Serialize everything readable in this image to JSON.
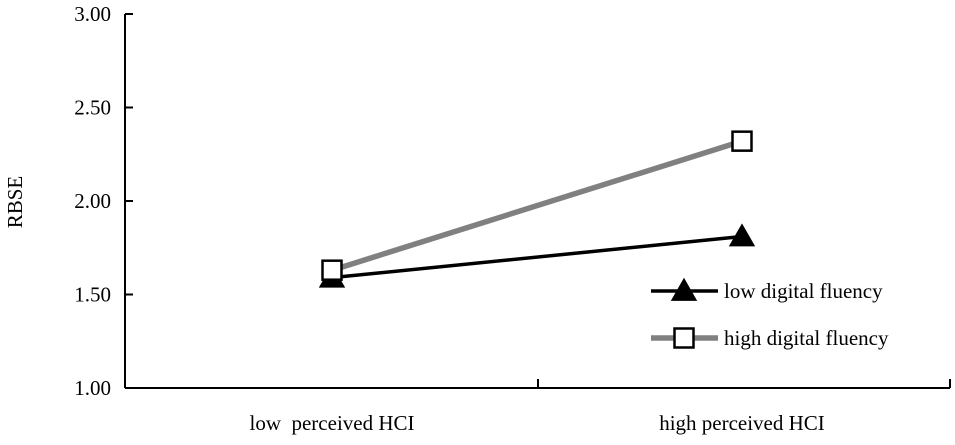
{
  "chart_data": {
    "type": "line",
    "title": "",
    "xlabel": "",
    "ylabel": "RBSE",
    "categories": [
      "low  perceived HCI",
      "high perceived HCI"
    ],
    "ylim": [
      1.0,
      3.0
    ],
    "yticks": [
      "1.00",
      "1.50",
      "2.00",
      "2.50",
      "3.00"
    ],
    "grid": false,
    "legend_position": "right",
    "series": [
      {
        "name": "low digital fluency",
        "values": [
          1.59,
          1.81
        ],
        "color": "#000000",
        "marker": "filled-triangle"
      },
      {
        "name": "high digital fluency",
        "values": [
          1.63,
          2.32
        ],
        "color": "#808080",
        "marker": "open-square"
      }
    ]
  }
}
